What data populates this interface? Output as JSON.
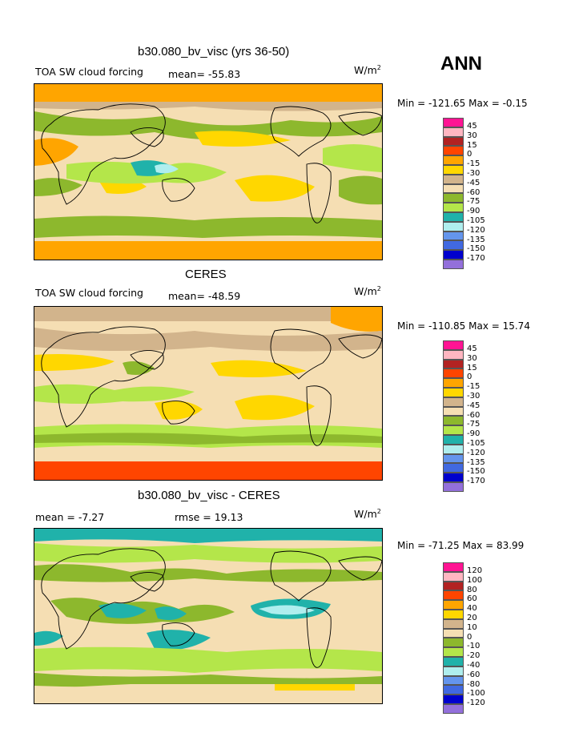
{
  "season_label": "ANN",
  "panels": [
    {
      "title": "b30.080_bv_visc (yrs 36-50)",
      "left_label": "TOA SW cloud forcing",
      "center_label": "mean= -55.83",
      "units": "W/m",
      "units_sup": "2",
      "minmax": "Min = -121.65 Max =  -0.15",
      "legend_labels": [
        "45",
        "30",
        "15",
        "0",
        "-15",
        "-30",
        "-45",
        "-60",
        "-75",
        "-90",
        "-105",
        "-120",
        "-135",
        "-150",
        "-170"
      ],
      "legend_colors": [
        "#ff1493",
        "#ffb6c1",
        "#b22222",
        "#ff4500",
        "#ffa500",
        "#ffd700",
        "#d2b48c",
        "#f5deb3",
        "#8db82d",
        "#b4e64a",
        "#20b2aa",
        "#afeeee",
        "#6495ed",
        "#4169e1",
        "#0000cd",
        "#9370db"
      ]
    },
    {
      "title": "CERES",
      "left_label": "TOA SW cloud forcing",
      "center_label": "mean= -48.59",
      "units": "W/m",
      "units_sup": "2",
      "minmax": "Min = -110.85 Max =  15.74",
      "legend_labels": [
        "45",
        "30",
        "15",
        "0",
        "-15",
        "-30",
        "-45",
        "-60",
        "-75",
        "-90",
        "-105",
        "-120",
        "-135",
        "-150",
        "-170"
      ],
      "legend_colors": [
        "#ff1493",
        "#ffb6c1",
        "#b22222",
        "#ff4500",
        "#ffa500",
        "#ffd700",
        "#d2b48c",
        "#f5deb3",
        "#8db82d",
        "#b4e64a",
        "#20b2aa",
        "#afeeee",
        "#6495ed",
        "#4169e1",
        "#0000cd",
        "#9370db"
      ]
    },
    {
      "title": "b30.080_bv_visc - CERES",
      "left_label": "mean =  -7.27",
      "center_label": "rmse =  19.13",
      "units": "W/m",
      "units_sup": "2",
      "minmax": "Min = -71.25 Max =  83.99",
      "legend_labels": [
        "120",
        "100",
        "80",
        "60",
        "40",
        "20",
        "10",
        "0",
        "-10",
        "-20",
        "-40",
        "-60",
        "-80",
        "-100",
        "-120"
      ],
      "legend_colors": [
        "#ff1493",
        "#ffb6c1",
        "#b22222",
        "#ff4500",
        "#ffa500",
        "#ffd700",
        "#d2b48c",
        "#f5deb3",
        "#8db82d",
        "#b4e64a",
        "#20b2aa",
        "#afeeee",
        "#6495ed",
        "#4169e1",
        "#0000cd",
        "#9370db"
      ]
    }
  ]
}
